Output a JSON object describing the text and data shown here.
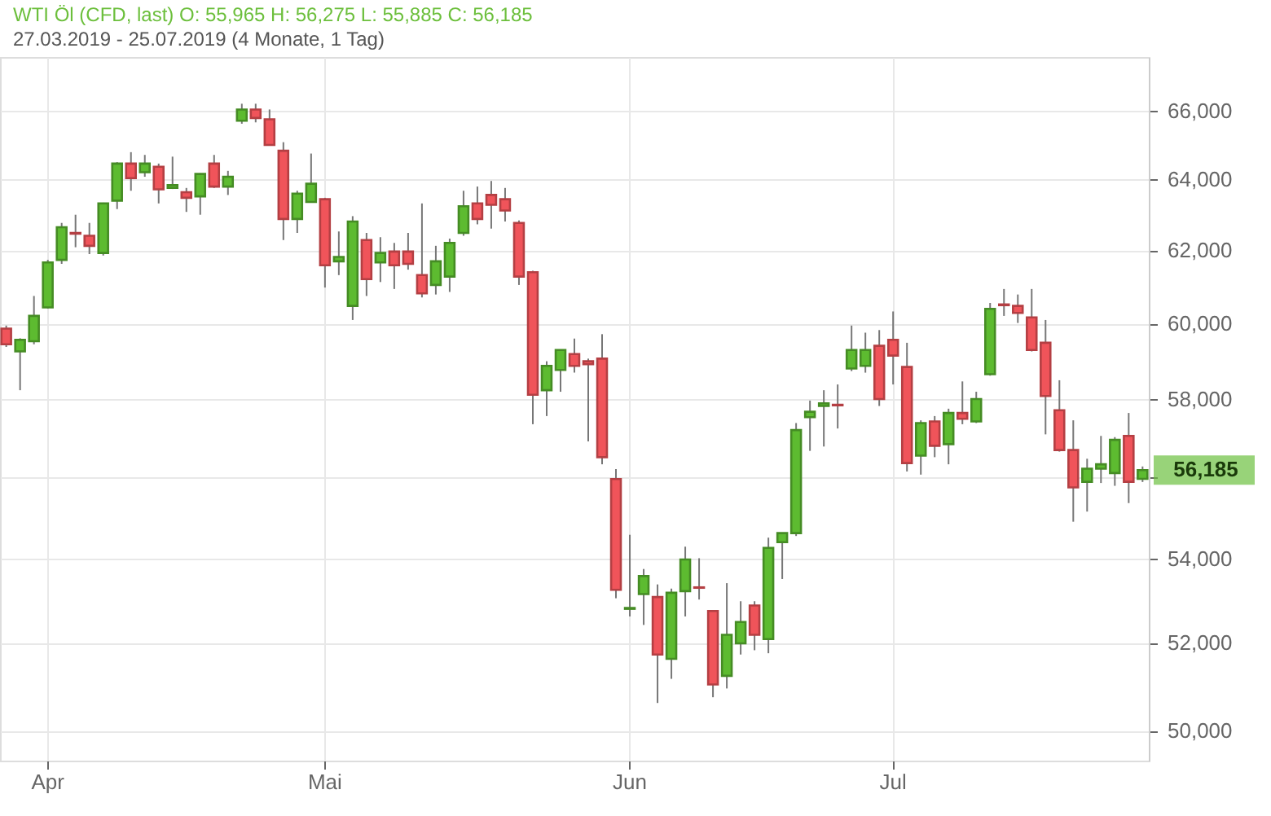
{
  "chart_data": {
    "type": "candlestick",
    "title": "WTI Öl (CFD, last)  O: 55,965  H: 56,275  L: 55,885  C: 56,185",
    "subtitle": "27.03.2019 - 25.07.2019   (4 Monate, 1 Tag)",
    "categories": [
      null,
      null,
      null,
      "Apr",
      null,
      null,
      null,
      null,
      null,
      null,
      null,
      null,
      null,
      null,
      null,
      null,
      null,
      null,
      null,
      null,
      null,
      null,
      null,
      "Mai",
      null,
      null,
      null,
      null,
      null,
      null,
      null,
      null,
      null,
      null,
      null,
      null,
      null,
      null,
      null,
      null,
      null,
      null,
      null,
      null,
      null,
      "Jun",
      null,
      null,
      null,
      null,
      null,
      null,
      null,
      null,
      null,
      null,
      null,
      null,
      null,
      null,
      null,
      null,
      null,
      null,
      "Jul",
      null,
      null,
      null,
      null,
      null,
      null,
      null,
      null,
      null,
      null,
      null,
      null,
      null,
      null,
      null,
      null,
      null,
      null
    ],
    "ohlc": [
      [
        59860,
        59940,
        59370,
        59440
      ],
      [
        59250,
        59600,
        58230,
        59560
      ],
      [
        59520,
        60740,
        59440,
        60200
      ],
      [
        60430,
        61730,
        60400,
        61660
      ],
      [
        61730,
        62760,
        61620,
        62640
      ],
      [
        62480,
        62990,
        62080,
        62460
      ],
      [
        62400,
        62760,
        61890,
        62120
      ],
      [
        61920,
        63330,
        61850,
        63310
      ],
      [
        63390,
        64490,
        63150,
        64450
      ],
      [
        64450,
        64780,
        63670,
        64030
      ],
      [
        64200,
        64700,
        64070,
        64450
      ],
      [
        64360,
        64450,
        63310,
        63710
      ],
      [
        63750,
        64650,
        63720,
        63830
      ],
      [
        63630,
        63750,
        63070,
        63470
      ],
      [
        63510,
        64170,
        62990,
        64150
      ],
      [
        64450,
        64700,
        63750,
        63790
      ],
      [
        63790,
        64240,
        63550,
        64070
      ],
      [
        65700,
        66200,
        65610,
        66030
      ],
      [
        66030,
        66200,
        65650,
        65780
      ],
      [
        65740,
        66030,
        64970,
        64990
      ],
      [
        64820,
        65070,
        62280,
        62870
      ],
      [
        62870,
        63670,
        62480,
        63590
      ],
      [
        63350,
        64740,
        63330,
        63870
      ],
      [
        63430,
        63470,
        60970,
        61580
      ],
      [
        61690,
        62520,
        61310,
        61810
      ],
      [
        60470,
        62950,
        60090,
        62800
      ],
      [
        62280,
        62480,
        60740,
        61200
      ],
      [
        61660,
        62360,
        61120,
        61920
      ],
      [
        61960,
        62200,
        60930,
        61580
      ],
      [
        61960,
        62480,
        61460,
        61620
      ],
      [
        61310,
        63310,
        60700,
        60810
      ],
      [
        61040,
        62120,
        60780,
        61690
      ],
      [
        61270,
        62320,
        60850,
        62200
      ],
      [
        62480,
        63670,
        62400,
        63230
      ],
      [
        63310,
        63790,
        62720,
        62870
      ],
      [
        63550,
        63950,
        62600,
        63270
      ],
      [
        63430,
        63750,
        62800,
        63110
      ],
      [
        62760,
        62830,
        61040,
        61270
      ],
      [
        61390,
        61430,
        57350,
        58110
      ],
      [
        58230,
        58990,
        57560,
        58870
      ],
      [
        58760,
        59300,
        58190,
        59290
      ],
      [
        59180,
        59590,
        58690,
        58870
      ],
      [
        58990,
        59060,
        56910,
        58910
      ],
      [
        59060,
        59710,
        56330,
        56510
      ],
      [
        55960,
        56210,
        53050,
        53250
      ],
      [
        52800,
        54580,
        52620,
        52820
      ],
      [
        53150,
        53750,
        52420,
        53580
      ],
      [
        53080,
        53380,
        50620,
        51730
      ],
      [
        51630,
        53280,
        51170,
        53180
      ],
      [
        53220,
        54290,
        52620,
        53980
      ],
      [
        53310,
        54010,
        53020,
        53300
      ],
      [
        52750,
        52770,
        50750,
        51040
      ],
      [
        51240,
        53410,
        50950,
        52190
      ],
      [
        51990,
        52980,
        51730,
        52490
      ],
      [
        52880,
        52980,
        51830,
        52190
      ],
      [
        52090,
        54510,
        51760,
        54260
      ],
      [
        54400,
        54630,
        53510,
        54620
      ],
      [
        54620,
        57380,
        54550,
        57200
      ],
      [
        57530,
        57960,
        56670,
        57670
      ],
      [
        57820,
        58230,
        56780,
        57890
      ],
      [
        57850,
        58380,
        57240,
        57840
      ],
      [
        58800,
        59940,
        58730,
        59290
      ],
      [
        58870,
        59750,
        58690,
        59290
      ],
      [
        59400,
        59820,
        57820,
        58000
      ],
      [
        59560,
        60320,
        58380,
        59140
      ],
      [
        58840,
        59480,
        56150,
        56360
      ],
      [
        56550,
        57450,
        56070,
        57380
      ],
      [
        57420,
        57560,
        56510,
        56800
      ],
      [
        56840,
        57750,
        56330,
        57640
      ],
      [
        57640,
        58460,
        57350,
        57490
      ],
      [
        57420,
        58190,
        57380,
        58000
      ],
      [
        58650,
        60550,
        58610,
        60390
      ],
      [
        60510,
        60930,
        60200,
        60490
      ],
      [
        60470,
        60780,
        60010,
        60280
      ],
      [
        60160,
        60930,
        59250,
        59290
      ],
      [
        59480,
        60090,
        57090,
        58080
      ],
      [
        57710,
        58490,
        56650,
        56690
      ],
      [
        56690,
        57450,
        54900,
        55750
      ],
      [
        55890,
        56470,
        55150,
        56220
      ],
      [
        56220,
        57050,
        55860,
        56330
      ],
      [
        56110,
        57020,
        55790,
        56950
      ],
      [
        57050,
        57640,
        55360,
        55890
      ],
      [
        55965,
        56275,
        55885,
        56185
      ]
    ],
    "colors": [
      "#f0545a",
      "#5dbb30",
      "#5dbb30",
      "#5dbb30",
      "#5dbb30",
      "#f0545a",
      "#f0545a",
      "#5dbb30",
      "#5dbb30",
      "#f0545a",
      "#5dbb30",
      "#f0545a",
      "#5dbb30",
      "#f0545a",
      "#5dbb30",
      "#f0545a",
      "#5dbb30",
      "#5dbb30",
      "#f0545a",
      "#f0545a",
      "#f0545a",
      "#5dbb30",
      "#5dbb30",
      "#f0545a",
      "#5dbb30",
      "#5dbb30",
      "#f0545a",
      "#5dbb30",
      "#f0545a",
      "#f0545a",
      "#f0545a",
      "#5dbb30",
      "#5dbb30",
      "#5dbb30",
      "#f0545a",
      "#f0545a",
      "#f0545a",
      "#f0545a",
      "#f0545a",
      "#5dbb30",
      "#5dbb30",
      "#f0545a",
      "#f0545a",
      "#f0545a",
      "#f0545a",
      "#5dbb30",
      "#5dbb30",
      "#f0545a",
      "#5dbb30",
      "#5dbb30",
      "#f0545a",
      "#f0545a",
      "#5dbb30",
      "#5dbb30",
      "#f0545a",
      "#5dbb30",
      "#5dbb30",
      "#5dbb30",
      "#5dbb30",
      "#5dbb30",
      "#f0545a",
      "#5dbb30",
      "#5dbb30",
      "#f0545a",
      "#f0545a",
      "#f0545a",
      "#5dbb30",
      "#f0545a",
      "#5dbb30",
      "#f0545a",
      "#5dbb30",
      "#5dbb30",
      "#f0545a",
      "#f0545a",
      "#f0545a",
      "#f0545a",
      "#f0545a",
      "#f0545a",
      "#5dbb30",
      "#5dbb30",
      "#5dbb30",
      "#f0545a",
      "#5dbb30"
    ],
    "log": true,
    "ylim": [
      49330,
      67600
    ],
    "yticks": [
      {
        "value": 50000,
        "label": "50,000"
      },
      {
        "value": 52000,
        "label": "52,000"
      },
      {
        "value": 54000,
        "label": "54,000"
      },
      {
        "value": 56000,
        "label": null
      },
      {
        "value": 58000,
        "label": "58,000"
      },
      {
        "value": 60000,
        "label": "60,000"
      },
      {
        "value": 62000,
        "label": "62,000"
      },
      {
        "value": 64000,
        "label": "64,000"
      },
      {
        "value": 66000,
        "label": "66,000"
      }
    ],
    "annotations": [
      "56,185"
    ],
    "grid": true
  }
}
